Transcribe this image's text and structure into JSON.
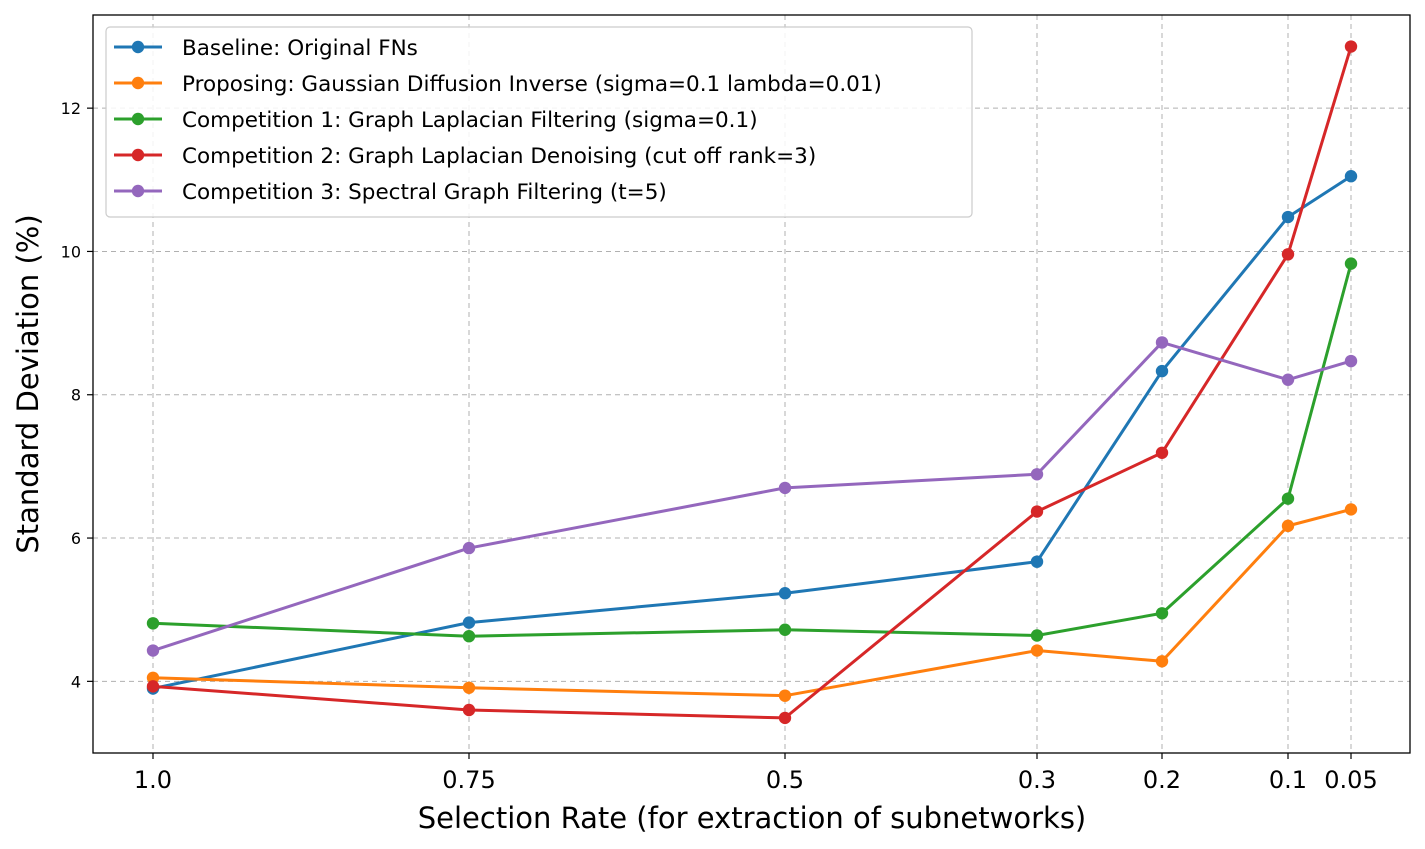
{
  "chart_data": {
    "type": "line",
    "title": "",
    "xlabel": "Selection Rate (for extraction of subnetworks)",
    "ylabel": "Standard Deviation (%)",
    "categories": [
      "1.0",
      "0.75",
      "0.5",
      "0.3",
      "0.2",
      "0.1",
      "0.05"
    ],
    "ylim": [
      3.0,
      13.3
    ],
    "yticks": [
      "4",
      "6",
      "8",
      "10",
      "12"
    ],
    "grid": true,
    "legend_position": "top-left",
    "series": [
      {
        "name": "Baseline: Original FNs",
        "color": "#1f77b4",
        "values": [
          3.9,
          4.82,
          5.23,
          5.67,
          8.33,
          10.48,
          11.05
        ]
      },
      {
        "name": "Proposing: Gaussian Diffusion Inverse (sigma=0.1 lambda=0.01)",
        "color": "#ff7f0e",
        "values": [
          4.05,
          3.91,
          3.8,
          4.43,
          4.28,
          6.17,
          6.4
        ]
      },
      {
        "name": "Competition 1: Graph Laplacian Filtering (sigma=0.1)",
        "color": "#2ca02c",
        "values": [
          4.81,
          4.63,
          4.72,
          4.64,
          4.95,
          6.55,
          9.83
        ]
      },
      {
        "name": "Competition 2: Graph Laplacian Denoising (cut off rank=3)",
        "color": "#d62728",
        "values": [
          3.93,
          3.6,
          3.49,
          6.37,
          7.19,
          9.96,
          12.86
        ]
      },
      {
        "name": "Competition 3: Spectral Graph Filtering (t=5)",
        "color": "#9467bd",
        "values": [
          4.43,
          5.86,
          6.7,
          6.89,
          8.73,
          8.21,
          8.47
        ]
      }
    ]
  }
}
